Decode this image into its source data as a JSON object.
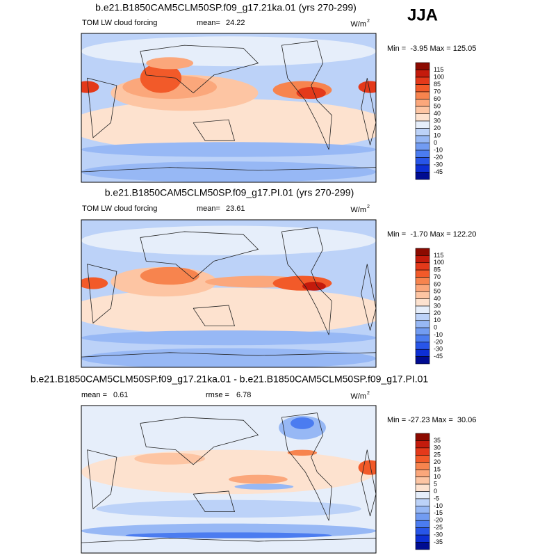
{
  "header": {
    "season": "JJA"
  },
  "panels": [
    {
      "title": "b.e21.B1850CAM5CLM50SP.f09_g17.21ka.01 (yrs 270-299)",
      "field": "TOM LW cloud forcing",
      "stats": [
        {
          "label": "mean=",
          "value": "24.22"
        }
      ],
      "units": "W/m",
      "units_exp": "2",
      "minmax": "Min =  -3.95 Max = 125.05",
      "colorbar": {
        "labels": [
          "115",
          "100",
          "85",
          "70",
          "60",
          "50",
          "40",
          "30",
          "20",
          "10",
          "0",
          "-10",
          "-20",
          "-30",
          "-45"
        ],
        "colors": [
          "#8c0a00",
          "#c41b0c",
          "#e4391a",
          "#f25a29",
          "#f7844e",
          "#fba77b",
          "#fdc5a3",
          "#fde2cf",
          "#e6eefa",
          "#bcd2f8",
          "#97b8f5",
          "#729cf2",
          "#4b7cf0",
          "#2855e8",
          "#0d2fd4",
          "#000c91"
        ]
      }
    },
    {
      "title": "b.e21.B1850CAM5CLM50SP.f09_g17.PI.01 (yrs 270-299)",
      "field": "TOM LW cloud forcing",
      "stats": [
        {
          "label": "mean=",
          "value": "23.61"
        }
      ],
      "units": "W/m",
      "units_exp": "2",
      "minmax": "Min =  -1.70 Max = 122.20",
      "colorbar": {
        "labels": [
          "115",
          "100",
          "85",
          "70",
          "60",
          "50",
          "40",
          "30",
          "20",
          "10",
          "0",
          "-10",
          "-20",
          "-30",
          "-45"
        ],
        "colors": [
          "#8c0a00",
          "#c41b0c",
          "#e4391a",
          "#f25a29",
          "#f7844e",
          "#fba77b",
          "#fdc5a3",
          "#fde2cf",
          "#e6eefa",
          "#bcd2f8",
          "#97b8f5",
          "#729cf2",
          "#4b7cf0",
          "#2855e8",
          "#0d2fd4",
          "#000c91"
        ]
      }
    },
    {
      "title": "b.e21.B1850CAM5CLM50SP.f09_g17.21ka.01 - b.e21.B1850CAM5CLM50SP.f09_g17.PI.01",
      "stats": [
        {
          "label": "mean =",
          "value": "0.61"
        },
        {
          "label": "rmse =",
          "value": "6.78"
        }
      ],
      "units": "W/m",
      "units_exp": "2",
      "minmax": "Min = -27.23 Max =  30.06",
      "colorbar": {
        "labels": [
          "35",
          "30",
          "25",
          "20",
          "15",
          "10",
          "5",
          "0",
          "-5",
          "-10",
          "-15",
          "-20",
          "-25",
          "-30",
          "-35"
        ],
        "colors": [
          "#8c0a00",
          "#c41b0c",
          "#e4391a",
          "#f25a29",
          "#f7844e",
          "#fba77b",
          "#fdc5a3",
          "#fde2cf",
          "#e6eefa",
          "#bcd2f8",
          "#97b8f5",
          "#729cf2",
          "#4b7cf0",
          "#2855e8",
          "#0d2fd4",
          "#000c91"
        ]
      }
    }
  ]
}
